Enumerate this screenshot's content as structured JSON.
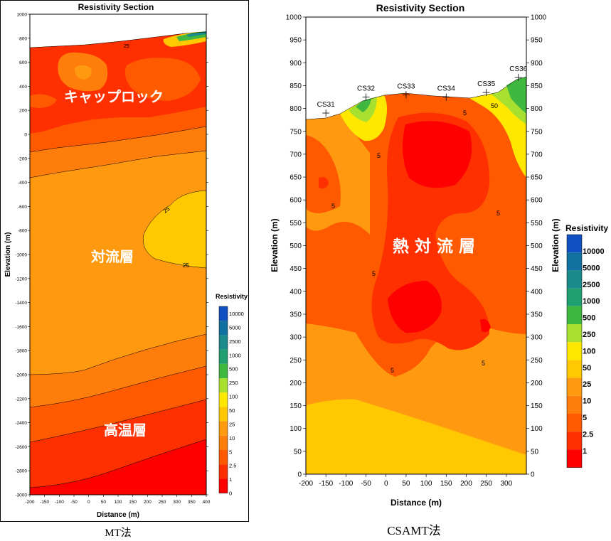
{
  "colors": {
    "c0": "#ff0000",
    "c1": "#ff3000",
    "c2": "#ff5a00",
    "c3": "#ff7d0a",
    "c4": "#ff9a10",
    "c5": "#ffc800",
    "c6": "#ffe800",
    "c7": "#a8e030",
    "c8": "#40b840",
    "c9": "#20a070",
    "c10": "#1a8a8a",
    "c11": "#1070a0",
    "c12": "#1050c0"
  },
  "chart_data": [
    {
      "type": "contour",
      "title": "Resistivity Section",
      "xlabel": "Distance (m)",
      "ylabel": "Elevation (m)",
      "xlim": [
        -200,
        400
      ],
      "ylim": [
        -3000,
        1000
      ],
      "xticks": [
        "-200",
        "-150",
        "-100",
        "-50",
        "0",
        "50",
        "100",
        "150",
        "200",
        "250",
        "300",
        "350",
        "400"
      ],
      "yticks": [
        "1000",
        "800",
        "600",
        "400",
        "200",
        "0",
        "-200",
        "-400",
        "-600",
        "-800",
        "-1000",
        "-1200",
        "-1400",
        "-1600",
        "-1800",
        "-2000",
        "-2200",
        "-2400",
        "-2600",
        "-2800",
        "-3000"
      ],
      "legend_title": "Resistivity",
      "legend_labels": [
        "10000",
        "5000",
        "2500",
        "1000",
        "500",
        "250",
        "100",
        "50",
        "25",
        "10",
        "5",
        "2.5",
        "1",
        "0"
      ],
      "contour_labels": [
        "25",
        "25",
        "25"
      ],
      "annotations": [
        "キャップロック",
        "対流層",
        "高温層"
      ],
      "caption": "MT法"
    },
    {
      "type": "contour",
      "title": "Resistivity Section",
      "xlabel": "Distance (m)",
      "ylabel": "Elevation (m)",
      "xlim": [
        -200,
        350
      ],
      "ylim": [
        0,
        1000
      ],
      "xticks": [
        "-200",
        "-150",
        "-100",
        "-50",
        "0",
        "50",
        "100",
        "150",
        "200",
        "250",
        "300"
      ],
      "yticks": [
        "1000",
        "950",
        "900",
        "850",
        "800",
        "750",
        "700",
        "650",
        "600",
        "550",
        "500",
        "450",
        "400",
        "350",
        "300",
        "250",
        "200",
        "150",
        "100",
        "50",
        "0"
      ],
      "legend_title": "Resistivity",
      "legend_labels": [
        "10000",
        "5000",
        "2500",
        "1000",
        "500",
        "250",
        "100",
        "50",
        "25",
        "10",
        "5",
        "2.5",
        "1"
      ],
      "stations": [
        {
          "name": "CS31",
          "x": -150,
          "elev": 790
        },
        {
          "name": "CS32",
          "x": -50,
          "elev": 825
        },
        {
          "name": "CS33",
          "x": 50,
          "elev": 830
        },
        {
          "name": "CS34",
          "x": 150,
          "elev": 825
        },
        {
          "name": "CS35",
          "x": 250,
          "elev": 835
        },
        {
          "name": "CS36",
          "x": 330,
          "elev": 868
        }
      ],
      "contour_labels": [
        "5",
        "5",
        "5",
        "5",
        "5",
        "5",
        "5",
        "50"
      ],
      "annotations": [
        "熱 対 流 層"
      ],
      "caption": "CSAMT法"
    }
  ]
}
